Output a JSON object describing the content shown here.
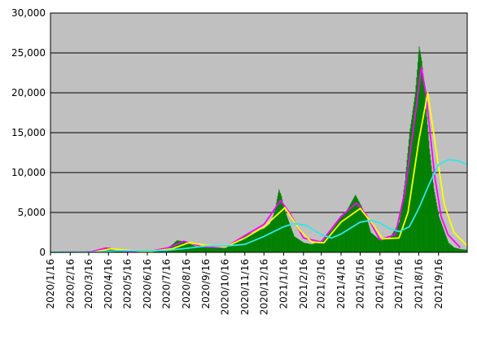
{
  "chart_data": {
    "type": "bar",
    "plot_background": "#c0c0c0",
    "grid": true,
    "legend": "none",
    "ylim": [
      0,
      30000
    ],
    "y_ticks": [
      {
        "value": 0,
        "label": "0"
      },
      {
        "value": 5000,
        "label": "5,000"
      },
      {
        "value": 10000,
        "label": "10,000"
      },
      {
        "value": 15000,
        "label": "15,000"
      },
      {
        "value": 20000,
        "label": "20,000"
      },
      {
        "value": 25000,
        "label": "25,000"
      },
      {
        "value": 30000,
        "label": "30,000"
      }
    ],
    "x_range": [
      "2020-01-16",
      "2021-10-31"
    ],
    "x_ticks": [
      {
        "date": "2020-01-16",
        "label": "2020/1/16"
      },
      {
        "date": "2020-02-16",
        "label": "2020/2/16"
      },
      {
        "date": "2020-03-16",
        "label": "2020/3/16"
      },
      {
        "date": "2020-04-16",
        "label": "2020/4/16"
      },
      {
        "date": "2020-05-16",
        "label": "2020/5/16"
      },
      {
        "date": "2020-06-16",
        "label": "2020/6/16"
      },
      {
        "date": "2020-07-16",
        "label": "2020/7/16"
      },
      {
        "date": "2020-08-16",
        "label": "2020/8/16"
      },
      {
        "date": "2020-09-16",
        "label": "2020/9/16"
      },
      {
        "date": "2020-10-16",
        "label": "2020/10/16"
      },
      {
        "date": "2020-11-16",
        "label": "2020/11/16"
      },
      {
        "date": "2020-12-16",
        "label": "2020/12/16"
      },
      {
        "date": "2021-01-16",
        "label": "2021/1/16"
      },
      {
        "date": "2021-02-16",
        "label": "2021/2/16"
      },
      {
        "date": "2021-03-16",
        "label": "2021/3/16"
      },
      {
        "date": "2021-04-16",
        "label": "2021/4/16"
      },
      {
        "date": "2021-05-16",
        "label": "2021/5/16"
      },
      {
        "date": "2021-06-16",
        "label": "2021/6/16"
      },
      {
        "date": "2021-07-16",
        "label": "2021/7/16"
      },
      {
        "date": "2021-08-16",
        "label": "2021/8/16"
      },
      {
        "date": "2021-09-16",
        "label": "2021/9/16"
      }
    ],
    "colors": {
      "bars": "#008000",
      "magenta_line": "#ff00ff",
      "yellow_line": "#ffff00",
      "cyan_line": "#33e6e6"
    },
    "bars": {
      "x": [
        "2020-01-16",
        "2020-02-16",
        "2020-03-16",
        "2020-04-01",
        "2020-04-16",
        "2020-05-01",
        "2020-05-16",
        "2020-06-16",
        "2020-07-01",
        "2020-07-16",
        "2020-07-25",
        "2020-08-01",
        "2020-08-10",
        "2020-08-20",
        "2020-09-01",
        "2020-09-16",
        "2020-10-01",
        "2020-10-16",
        "2020-11-01",
        "2020-11-16",
        "2020-12-01",
        "2020-12-16",
        "2020-12-25",
        "2021-01-01",
        "2021-01-08",
        "2021-01-12",
        "2021-01-16",
        "2021-01-25",
        "2021-02-01",
        "2021-02-16",
        "2021-03-01",
        "2021-03-16",
        "2021-04-01",
        "2021-04-16",
        "2021-04-25",
        "2021-05-01",
        "2021-05-08",
        "2021-05-16",
        "2021-05-25",
        "2021-06-01",
        "2021-06-16",
        "2021-07-01",
        "2021-07-16",
        "2021-07-25",
        "2021-08-01",
        "2021-08-10",
        "2021-08-16",
        "2021-08-20",
        "2021-08-25",
        "2021-09-01",
        "2021-09-08",
        "2021-09-16",
        "2021-09-25",
        "2021-10-01",
        "2021-10-10",
        "2021-10-20",
        "2021-10-31"
      ],
      "values": [
        0,
        10,
        40,
        400,
        600,
        300,
        80,
        50,
        150,
        500,
        1000,
        1500,
        1400,
        1100,
        700,
        600,
        550,
        600,
        1200,
        2100,
        2600,
        3000,
        3600,
        5000,
        7900,
        7000,
        5500,
        3500,
        2000,
        1200,
        1000,
        1500,
        2800,
        4500,
        5300,
        6200,
        7200,
        6000,
        4500,
        2500,
        1500,
        1800,
        3800,
        9000,
        15000,
        20000,
        25800,
        24000,
        20000,
        13000,
        8000,
        4500,
        2500,
        1200,
        600,
        400,
        300
      ]
    },
    "series": [
      {
        "x": [
          "2020-01-16",
          "2020-03-20",
          "2020-04-12",
          "2020-05-10",
          "2020-06-16",
          "2020-07-20",
          "2020-08-12",
          "2020-09-10",
          "2020-10-16",
          "2020-11-16",
          "2020-12-16",
          "2021-01-11",
          "2021-01-25",
          "2021-02-16",
          "2021-03-16",
          "2021-04-16",
          "2021-05-10",
          "2021-05-25",
          "2021-06-16",
          "2021-07-10",
          "2021-07-25",
          "2021-08-10",
          "2021-08-20",
          "2021-08-27",
          "2021-09-10",
          "2021-09-20",
          "2021-10-01",
          "2021-10-20"
        ],
        "values": [
          0,
          80,
          550,
          150,
          50,
          600,
          1400,
          700,
          600,
          2100,
          3500,
          6500,
          5000,
          1800,
          1300,
          4500,
          6200,
          4800,
          1600,
          2200,
          7500,
          17000,
          23200,
          20000,
          9500,
          4500,
          2200,
          600
        ]
      },
      {
        "x": [
          "2020-01-16",
          "2020-03-25",
          "2020-04-20",
          "2020-05-20",
          "2020-06-16",
          "2020-07-25",
          "2020-08-20",
          "2020-09-16",
          "2020-10-16",
          "2020-11-16",
          "2020-12-16",
          "2021-01-18",
          "2021-02-10",
          "2021-03-01",
          "2021-03-20",
          "2021-04-16",
          "2021-05-16",
          "2021-06-05",
          "2021-06-20",
          "2021-07-16",
          "2021-07-30",
          "2021-08-16",
          "2021-08-30",
          "2021-09-10",
          "2021-09-25",
          "2021-10-10",
          "2021-10-31"
        ],
        "values": [
          0,
          50,
          450,
          250,
          80,
          450,
          1200,
          900,
          650,
          1800,
          3200,
          5600,
          2800,
          1300,
          1200,
          3800,
          5500,
          3500,
          1700,
          1800,
          5000,
          14000,
          20000,
          14000,
          6000,
          2500,
          800
        ]
      },
      {
        "x": [
          "2020-01-16",
          "2020-04-01",
          "2020-05-01",
          "2020-06-16",
          "2020-07-16",
          "2020-08-16",
          "2020-09-16",
          "2020-10-16",
          "2020-11-16",
          "2020-12-16",
          "2021-01-16",
          "2021-02-01",
          "2021-02-20",
          "2021-03-16",
          "2021-04-01",
          "2021-04-16",
          "2021-05-16",
          "2021-06-01",
          "2021-06-16",
          "2021-07-01",
          "2021-07-16",
          "2021-08-01",
          "2021-08-16",
          "2021-09-01",
          "2021-09-16",
          "2021-10-01",
          "2021-10-16",
          "2021-10-31"
        ],
        "values": [
          0,
          50,
          200,
          200,
          250,
          500,
          800,
          800,
          1000,
          2000,
          3200,
          3600,
          3400,
          2200,
          1800,
          2300,
          3800,
          4000,
          3700,
          3000,
          2600,
          3200,
          5500,
          8500,
          11000,
          11600,
          11500,
          11000
        ]
      }
    ]
  }
}
